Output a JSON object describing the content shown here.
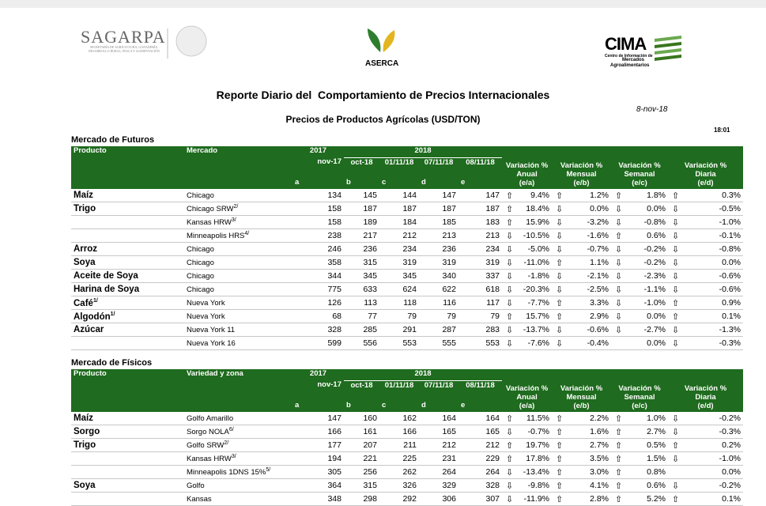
{
  "header": {
    "sagarpa": "SAGARPA",
    "sagarpa_sub": "SECRETARÍA DE AGRICULTURA, GANADERÍA, DESARROLLO RURAL, PESCA Y ALIMENTACIÓN",
    "aserca": "ASERCA",
    "cima": "CIMA",
    "cima_sub": [
      "Centro de Información de",
      "Mercados",
      "Agroalimentarios"
    ],
    "title": "Reporte Diario del  Comportamiento de Precios Internacionales",
    "date": "8-nov-18",
    "subtitle": "Precios de Productos Agrícolas (USD/TON)",
    "time": "18:01"
  },
  "tables": [
    {
      "section": "Mercado de Futuros",
      "columns": {
        "producto": "Producto",
        "mercado": "Mercado",
        "year_a": "2017",
        "year_b": "2018",
        "dates": [
          "nov-17",
          "oct-18",
          "01/11/18",
          "07/11/18",
          "08/11/18"
        ],
        "letters": [
          "a",
          "b",
          "c",
          "d",
          "e"
        ],
        "variations": [
          {
            "title": "Variación %",
            "period": "Anual",
            "ratio": "(e/a)"
          },
          {
            "title": "Variación %",
            "period": "Mensual",
            "ratio": "(e/b)"
          },
          {
            "title": "Variación %",
            "period": "Semanal",
            "ratio": "(e/c)"
          },
          {
            "title": "Variación %",
            "period": "Diaria",
            "ratio": "(e/d)"
          }
        ]
      },
      "rows": [
        {
          "producto": "Maíz",
          "mercado": "Chicago",
          "values": [
            134,
            145,
            144,
            147,
            147
          ],
          "variations": [
            {
              "arrow": "⇧",
              "value": "9.4%"
            },
            {
              "arrow": "⇧",
              "value": "1.2%"
            },
            {
              "arrow": "⇧",
              "value": "1.8%"
            },
            {
              "arrow": "⇧",
              "value": "0.3%"
            }
          ]
        },
        {
          "producto": "Trigo",
          "mercado": "Chicago SRW",
          "mercado_sup": "2/",
          "values": [
            158,
            187,
            187,
            187,
            187
          ],
          "variations": [
            {
              "arrow": "⇧",
              "value": "18.4%"
            },
            {
              "arrow": "⇩",
              "value": "0.0%"
            },
            {
              "arrow": "⇩",
              "value": "0.0%"
            },
            {
              "arrow": "⇩",
              "value": "-0.5%"
            }
          ]
        },
        {
          "mercado": "Kansas HRW",
          "mercado_sup": "3/",
          "values": [
            158,
            189,
            184,
            185,
            183
          ],
          "variations": [
            {
              "arrow": "⇧",
              "value": "15.9%"
            },
            {
              "arrow": "⇩",
              "value": "-3.2%"
            },
            {
              "arrow": "⇩",
              "value": "-0.8%"
            },
            {
              "arrow": "⇩",
              "value": "-1.0%"
            }
          ]
        },
        {
          "mercado": "Minneapolis HRS",
          "mercado_sup": "4/",
          "values": [
            238,
            217,
            212,
            213,
            213
          ],
          "variations": [
            {
              "arrow": "⇩",
              "value": "-10.5%"
            },
            {
              "arrow": "⇩",
              "value": "-1.6%"
            },
            {
              "arrow": "⇧",
              "value": "0.6%"
            },
            {
              "arrow": "⇩",
              "value": "-0.1%"
            }
          ]
        },
        {
          "producto": "Arroz",
          "mercado": "Chicago",
          "values": [
            246,
            236,
            234,
            236,
            234
          ],
          "variations": [
            {
              "arrow": "⇩",
              "value": "-5.0%"
            },
            {
              "arrow": "⇩",
              "value": "-0.7%"
            },
            {
              "arrow": "⇩",
              "value": "-0.2%"
            },
            {
              "arrow": "⇩",
              "value": "-0.8%"
            }
          ]
        },
        {
          "producto": "Soya",
          "mercado": "Chicago",
          "values": [
            358,
            315,
            319,
            319,
            319
          ],
          "variations": [
            {
              "arrow": "⇩",
              "value": "-11.0%"
            },
            {
              "arrow": "⇧",
              "value": "1.1%"
            },
            {
              "arrow": "⇩",
              "value": "-0.2%"
            },
            {
              "arrow": "⇩",
              "value": "0.0%"
            }
          ]
        },
        {
          "producto": "Aceite de Soya",
          "mercado": "Chicago",
          "values": [
            344,
            345,
            345,
            340,
            337
          ],
          "variations": [
            {
              "arrow": "⇩",
              "value": "-1.8%"
            },
            {
              "arrow": "⇩",
              "value": "-2.1%"
            },
            {
              "arrow": "⇩",
              "value": "-2.3%"
            },
            {
              "arrow": "⇩",
              "value": "-0.6%"
            }
          ]
        },
        {
          "producto": "Harina de Soya",
          "mercado": "Chicago",
          "values": [
            775,
            633,
            624,
            622,
            618
          ],
          "variations": [
            {
              "arrow": "⇩",
              "value": "-20.3%"
            },
            {
              "arrow": "⇩",
              "value": "-2.5%"
            },
            {
              "arrow": "⇩",
              "value": "-1.1%"
            },
            {
              "arrow": "⇩",
              "value": "-0.6%"
            }
          ]
        },
        {
          "producto": "Café",
          "producto_sup": "1/",
          "mercado": "Nueva York",
          "values": [
            126,
            113,
            118,
            116,
            117
          ],
          "variations": [
            {
              "arrow": "⇩",
              "value": "-7.7%"
            },
            {
              "arrow": "⇧",
              "value": "3.3%"
            },
            {
              "arrow": "⇩",
              "value": "-1.0%"
            },
            {
              "arrow": "⇧",
              "value": "0.9%"
            }
          ]
        },
        {
          "producto": "Algodón",
          "producto_sup": "1/",
          "mercado": "Nueva York",
          "values": [
            68,
            77,
            79,
            79,
            79
          ],
          "variations": [
            {
              "arrow": "⇧",
              "value": "15.7%"
            },
            {
              "arrow": "⇧",
              "value": "2.9%"
            },
            {
              "arrow": "⇩",
              "value": "0.0%"
            },
            {
              "arrow": "⇧",
              "value": "0.1%"
            }
          ]
        },
        {
          "producto": "Azúcar",
          "mercado": "Nueva York 11",
          "values": [
            328,
            285,
            291,
            287,
            283
          ],
          "variations": [
            {
              "arrow": "⇩",
              "value": "-13.7%"
            },
            {
              "arrow": "⇩",
              "value": "-0.6%"
            },
            {
              "arrow": "⇩",
              "value": "-2.7%"
            },
            {
              "arrow": "⇩",
              "value": "-1.3%"
            }
          ]
        },
        {
          "mercado": "Nueva York 16",
          "values": [
            599,
            556,
            553,
            555,
            553
          ],
          "variations": [
            {
              "arrow": "⇩",
              "value": "-7.6%"
            },
            {
              "arrow": "⇩",
              "value": "-0.4%"
            },
            {
              "value": "0.0%"
            },
            {
              "arrow": "⇩",
              "value": "-0.3%"
            }
          ]
        }
      ]
    },
    {
      "section": "Mercado de Físicos",
      "columns": {
        "producto": "Producto",
        "mercado": "Variedad y zona",
        "year_a": "2017",
        "year_b": "2018",
        "dates": [
          "nov-17",
          "oct-18",
          "01/11/18",
          "07/11/18",
          "08/11/18"
        ],
        "letters": [
          "a",
          "b",
          "c",
          "d",
          "e"
        ],
        "variations": [
          {
            "title": "Variación %",
            "period": "Anual",
            "ratio": "(e/a)"
          },
          {
            "title": "Variación %",
            "period": "Mensual",
            "ratio": "(e/b)"
          },
          {
            "title": "Variación %",
            "period": "Semanal",
            "ratio": "(e/c)"
          },
          {
            "title": "Variación %",
            "period": "Diaria",
            "ratio": "(e/d)"
          }
        ]
      },
      "rows": [
        {
          "producto": "Maíz",
          "mercado": "Golfo Amarillo",
          "values": [
            147,
            160,
            162,
            164,
            164
          ],
          "variations": [
            {
              "arrow": "⇧",
              "value": "11.5%"
            },
            {
              "arrow": "⇧",
              "value": "2.2%"
            },
            {
              "arrow": "⇧",
              "value": "1.0%"
            },
            {
              "arrow": "⇩",
              "value": "-0.2%"
            }
          ]
        },
        {
          "producto": "Sorgo",
          "mercado": "Sorgo NOLA",
          "mercado_sup": "6/",
          "values": [
            166,
            161,
            166,
            165,
            165
          ],
          "variations": [
            {
              "arrow": "⇩",
              "value": "-0.7%"
            },
            {
              "arrow": "⇧",
              "value": "1.6%"
            },
            {
              "arrow": "⇧",
              "value": "2.7%"
            },
            {
              "arrow": "⇩",
              "value": "-0.3%"
            }
          ]
        },
        {
          "producto": "Trigo",
          "mercado": "Golfo SRW",
          "mercado_sup": "2/",
          "values": [
            177,
            207,
            211,
            212,
            212
          ],
          "variations": [
            {
              "arrow": "⇧",
              "value": "19.7%"
            },
            {
              "arrow": "⇧",
              "value": "2.7%"
            },
            {
              "arrow": "⇧",
              "value": "0.5%"
            },
            {
              "arrow": "⇧",
              "value": "0.2%"
            }
          ]
        },
        {
          "mercado": "Kansas HRW",
          "mercado_sup": "3/",
          "values": [
            194,
            221,
            225,
            231,
            229
          ],
          "variations": [
            {
              "arrow": "⇧",
              "value": "17.8%"
            },
            {
              "arrow": "⇧",
              "value": "3.5%"
            },
            {
              "arrow": "⇧",
              "value": "1.5%"
            },
            {
              "arrow": "⇩",
              "value": "-1.0%"
            }
          ]
        },
        {
          "mercado": "Minneapolis 1DNS 15%",
          "mercado_sup": "5/",
          "values": [
            305,
            256,
            262,
            264,
            264
          ],
          "variations": [
            {
              "arrow": "⇩",
              "value": "-13.4%"
            },
            {
              "arrow": "⇧",
              "value": "3.0%"
            },
            {
              "arrow": "⇧",
              "value": "0.8%"
            },
            {
              "value": "0.0%"
            }
          ]
        },
        {
          "producto": "Soya",
          "mercado": "Golfo",
          "values": [
            364,
            315,
            326,
            329,
            328
          ],
          "variations": [
            {
              "arrow": "⇩",
              "value": "-9.8%"
            },
            {
              "arrow": "⇧",
              "value": "4.1%"
            },
            {
              "arrow": "⇧",
              "value": "0.6%"
            },
            {
              "arrow": "⇩",
              "value": "-0.2%"
            }
          ]
        },
        {
          "mercado": "Kansas",
          "values": [
            348,
            298,
            292,
            306,
            307
          ],
          "variations": [
            {
              "arrow": "⇩",
              "value": "-11.9%"
            },
            {
              "arrow": "⇧",
              "value": "2.8%"
            },
            {
              "arrow": "⇧",
              "value": "5.2%"
            },
            {
              "arrow": "⇧",
              "value": "0.1%"
            }
          ]
        }
      ]
    }
  ]
}
